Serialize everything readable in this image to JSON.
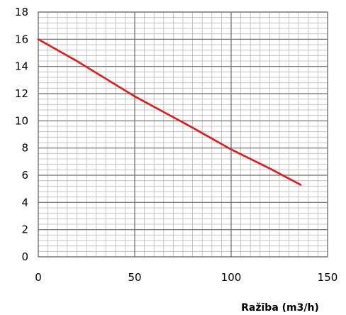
{
  "chart_data": {
    "type": "line",
    "title": "",
    "xlabel": "Ražība (m3/h)",
    "ylabel": "",
    "xlim": [
      0,
      150
    ],
    "ylim": [
      0,
      18
    ],
    "x_ticks": [
      "0",
      "50",
      "100",
      "150"
    ],
    "y_ticks": [
      "0",
      "2",
      "4",
      "6",
      "8",
      "10",
      "12",
      "14",
      "16",
      "18"
    ],
    "grid": true,
    "legend": "none",
    "series": [
      {
        "color": "#e31a1c",
        "x": [
          0,
          20,
          50,
          80,
          100,
          120,
          136
        ],
        "y": [
          16.0,
          14.4,
          11.8,
          9.5,
          7.9,
          6.5,
          5.3
        ]
      }
    ]
  }
}
